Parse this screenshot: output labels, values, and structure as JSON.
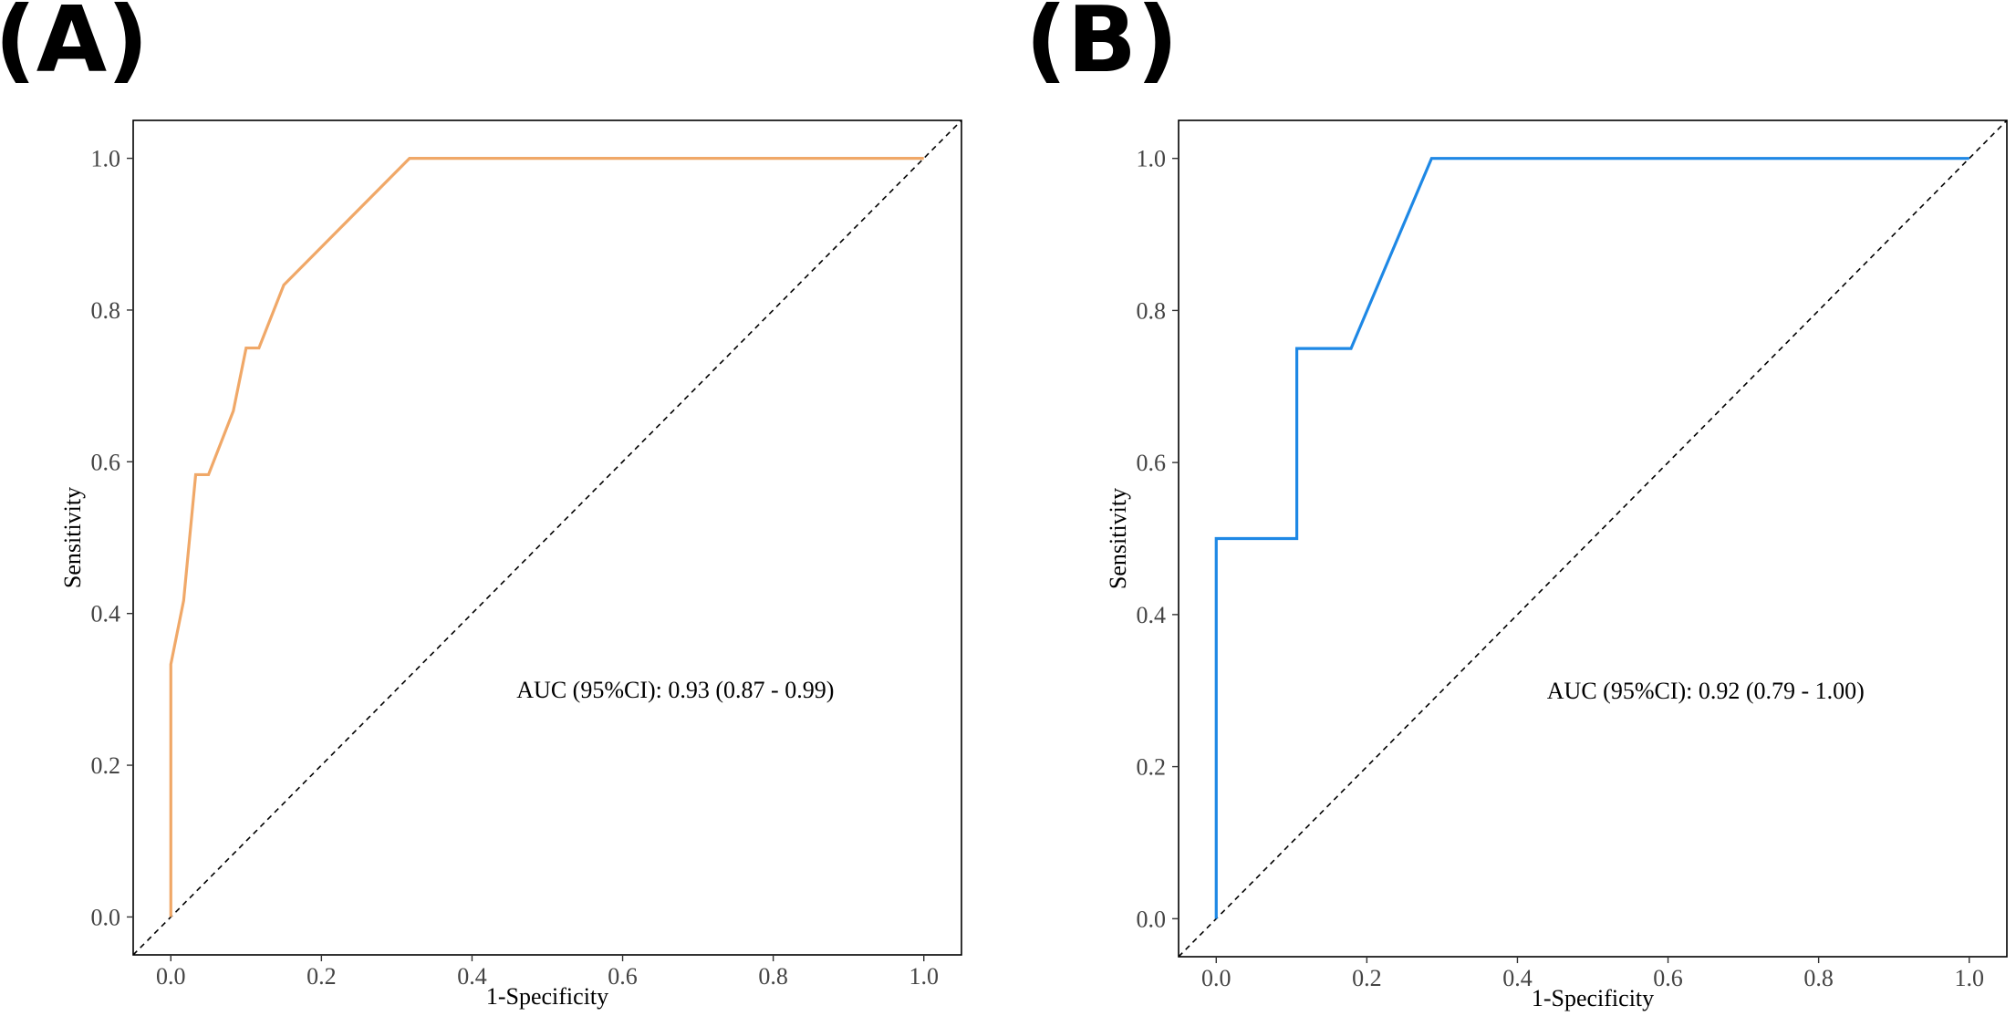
{
  "panels": [
    "(A)",
    "(B)"
  ],
  "chart_data": [
    {
      "type": "line",
      "panel_label": "(A)",
      "xlabel": "1-Specificity",
      "ylabel": "Sensitivity",
      "xlim": [
        -0.05,
        1.05
      ],
      "ylim": [
        -0.05,
        1.05
      ],
      "x_ticks": [
        "0.0",
        "0.2",
        "0.4",
        "0.6",
        "0.8",
        "1.0"
      ],
      "y_ticks": [
        "0.0",
        "0.2",
        "0.4",
        "0.6",
        "0.8",
        "1.0"
      ],
      "grid": false,
      "annotation": "AUC (95%CI): 0.93 (0.87 - 0.99)",
      "annotation_pos": [
        0.67,
        0.3
      ],
      "reference_line": [
        [
          -0.05,
          -0.05
        ],
        [
          1.05,
          1.05
        ]
      ],
      "series": [
        {
          "color": "#F0A868",
          "points": [
            [
              0,
              0
            ],
            [
              0,
              0.333
            ],
            [
              0.017,
              0.417
            ],
            [
              0.033,
              0.583
            ],
            [
              0.05,
              0.583
            ],
            [
              0.083,
              0.667
            ],
            [
              0.1,
              0.75
            ],
            [
              0.117,
              0.75
            ],
            [
              0.15,
              0.833
            ],
            [
              0.317,
              1.0
            ],
            [
              1.0,
              1.0
            ]
          ]
        }
      ]
    },
    {
      "type": "line",
      "panel_label": "(B)",
      "xlabel": "1-Specificity",
      "ylabel": "Sensitivity",
      "xlim": [
        -0.05,
        1.05
      ],
      "ylim": [
        -0.05,
        1.05
      ],
      "x_ticks": [
        "0.0",
        "0.2",
        "0.4",
        "0.6",
        "0.8",
        "1.0"
      ],
      "y_ticks": [
        "0.0",
        "0.2",
        "0.4",
        "0.6",
        "0.8",
        "1.0"
      ],
      "grid": false,
      "annotation": "AUC (95%CI): 0.92 (0.79 - 1.00)",
      "annotation_pos": [
        0.65,
        0.3
      ],
      "reference_line": [
        [
          -0.05,
          -0.05
        ],
        [
          1.05,
          1.05
        ]
      ],
      "series": [
        {
          "color": "#1E88E5",
          "points": [
            [
              0,
              0
            ],
            [
              0,
              0.5
            ],
            [
              0.107,
              0.5
            ],
            [
              0.107,
              0.75
            ],
            [
              0.179,
              0.75
            ],
            [
              0.286,
              1.0
            ],
            [
              1.0,
              1.0
            ]
          ]
        }
      ]
    }
  ]
}
